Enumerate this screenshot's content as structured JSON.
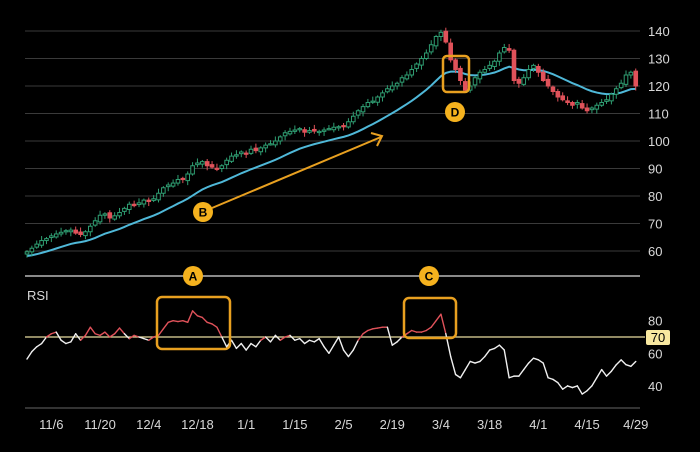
{
  "chart_data": [
    {
      "type": "candlestick",
      "title": "",
      "ylim": [
        60,
        140
      ],
      "y_ticks": [
        "60",
        "70",
        "80",
        "90",
        "100",
        "110",
        "120",
        "130",
        "140"
      ],
      "y_tick_values": [
        60,
        70,
        80,
        90,
        100,
        110,
        120,
        130,
        140
      ],
      "grid": true,
      "moving_average": {
        "period": 20,
        "color": "#4fb8d8"
      },
      "up_color": "#2f9e72",
      "down_color": "#e0525a",
      "closes": [
        59.7,
        61,
        62.5,
        63.8,
        64.5,
        65.5,
        66.2,
        66.8,
        67.4,
        67.6,
        66.5,
        66,
        67,
        69,
        71,
        73,
        73.5,
        72,
        72.8,
        74,
        75.5,
        77,
        76.5,
        77.5,
        78.5,
        78,
        79,
        81,
        83,
        84,
        84.7,
        86,
        86,
        88,
        91,
        92,
        92.5,
        91,
        90.5,
        90,
        91,
        93,
        94.5,
        95,
        96,
        95.5,
        97,
        96.5,
        97.5,
        98.5,
        99,
        100,
        101.5,
        103,
        103.5,
        104,
        104.5,
        103.2,
        103.8,
        103.6,
        103.5,
        104,
        104.5,
        105,
        105.2,
        105.5,
        107,
        109,
        111,
        112.5,
        114,
        114.5,
        116,
        117.5,
        119,
        120,
        121,
        123,
        124,
        126,
        128,
        130,
        132,
        135,
        138,
        139.5,
        136,
        129.5,
        126,
        122,
        118.5,
        120,
        123,
        125,
        126,
        127.5,
        129,
        132,
        134,
        133,
        122,
        121,
        123,
        126,
        127.5,
        125,
        122,
        120,
        118,
        116,
        115,
        114,
        113,
        114,
        112,
        111,
        112,
        113,
        114,
        115,
        117,
        119,
        121,
        124,
        125,
        120
      ],
      "annotations": [
        {
          "label": "B",
          "note": "uptrend arrow"
        },
        {
          "label": "D",
          "note": "highlighted candles"
        }
      ]
    },
    {
      "type": "line",
      "title": "RSI",
      "ylim": [
        30,
        90
      ],
      "y_ticks": [
        "40",
        "60",
        "70",
        "80"
      ],
      "y_tick_values": [
        40,
        60,
        70,
        80
      ],
      "threshold": {
        "value": 70,
        "label": "70",
        "color": "#e8dca0"
      },
      "overbought_color": "#e0525a",
      "line_color": "#f0f0f0",
      "values": [
        56.5,
        61,
        64,
        66,
        70,
        72,
        73,
        68,
        66,
        67,
        72,
        68,
        71,
        76,
        72,
        71,
        73,
        70,
        72,
        75.5,
        72,
        69,
        71,
        70,
        69,
        68,
        70,
        71,
        75,
        79,
        80,
        79.5,
        80,
        79,
        86,
        83,
        82,
        79,
        78,
        76,
        70,
        64,
        68,
        63,
        66,
        62,
        66,
        64,
        68,
        70,
        67,
        71,
        68,
        70,
        71,
        68,
        69,
        66,
        68,
        67,
        69,
        64,
        60,
        65,
        70,
        62,
        58,
        62,
        68,
        72,
        74,
        75,
        75.5,
        76,
        76,
        65,
        67,
        70,
        72,
        74,
        73,
        73,
        74,
        76,
        80,
        84,
        72,
        58,
        47,
        45,
        50,
        55,
        54,
        55,
        58,
        62,
        63,
        65,
        62,
        45,
        46,
        46,
        50,
        54,
        57,
        56,
        54,
        45,
        44,
        42,
        38,
        40,
        39,
        40,
        35,
        37,
        40,
        45,
        50,
        46,
        49,
        53,
        56,
        53,
        52,
        55
      ],
      "annotations": [
        {
          "label": "A",
          "note": "overbought region"
        },
        {
          "label": "C",
          "note": "overbought region"
        }
      ]
    }
  ],
  "x_axis": {
    "tick_labels": [
      "11/6",
      "11/20",
      "12/4",
      "12/18",
      "1/1",
      "1/15",
      "2/5",
      "2/19",
      "3/4",
      "3/18",
      "4/1",
      "4/15",
      "4/29"
    ],
    "tick_indices": [
      5,
      15,
      25,
      35,
      45,
      55,
      65,
      75,
      85,
      95,
      105,
      115,
      125
    ]
  },
  "colors": {
    "accent": "#e8a020",
    "grid": "#3a3a3a",
    "separator": "#8a8a8a"
  }
}
